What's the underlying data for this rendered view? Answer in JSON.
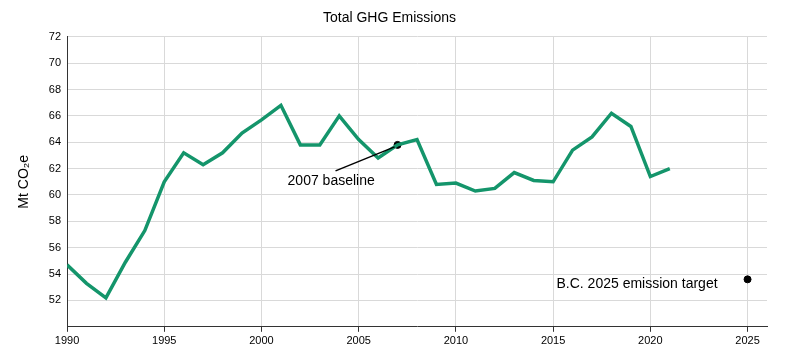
{
  "chart_data": {
    "type": "line",
    "title": "Total GHG Emissions",
    "y_label": "Mt CO₂e",
    "x": [
      1990,
      1991,
      1992,
      1993,
      1994,
      1995,
      1996,
      1997,
      1998,
      1999,
      2000,
      2001,
      2002,
      2003,
      2004,
      2005,
      2006,
      2007,
      2008,
      2009,
      2010,
      2011,
      2012,
      2013,
      2014,
      2015,
      2016,
      2017,
      2018,
      2019,
      2020,
      2021
    ],
    "values": [
      54.7,
      53.3,
      52.2,
      54.9,
      57.3,
      61.0,
      63.2,
      62.3,
      63.2,
      64.7,
      65.7,
      66.8,
      63.8,
      63.8,
      66.0,
      64.2,
      62.8,
      63.8,
      64.2,
      60.8,
      60.9,
      60.3,
      60.5,
      61.7,
      61.1,
      61.0,
      63.4,
      64.4,
      66.2,
      65.2,
      61.4,
      62.0
    ],
    "color": "#14956b",
    "annotations": [
      {
        "text": "2007 baseline",
        "x": 2007,
        "y": 63.8
      },
      {
        "text": "B.C. 2025 emission target",
        "x": 2025,
        "y": 53.6
      }
    ],
    "xlim": [
      1990,
      2026
    ],
    "xticks": [
      1990,
      1995,
      2000,
      2005,
      2010,
      2015,
      2020,
      2025
    ],
    "ylim": [
      50,
      72
    ],
    "yticks": [
      52,
      54,
      56,
      58,
      60,
      62,
      64,
      66,
      68,
      70,
      72
    ],
    "grid": true
  }
}
